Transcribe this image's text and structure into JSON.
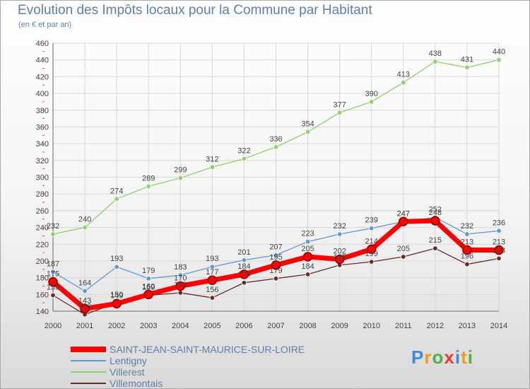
{
  "header": {
    "title": "Evolution des Impôts locaux pour la Commune par Habitant",
    "subtitle": "(en € et par an)"
  },
  "brand": {
    "letters": [
      "P",
      "r",
      "o",
      "x",
      "i",
      "t",
      "i"
    ],
    "colors": [
      "#3c8fd6",
      "#f39c12",
      "#4caf50",
      "#e53935",
      "#3c8fd6",
      "#f39c12",
      "#4caf50"
    ]
  },
  "chart_data": {
    "type": "line",
    "x": [
      "2000",
      "2001",
      "2002",
      "2003",
      "2004",
      "2005",
      "2006",
      "2007",
      "2008",
      "2009",
      "2010",
      "2011",
      "2012",
      "2013",
      "2014"
    ],
    "ylim": [
      140,
      460
    ],
    "yticks": [
      "140",
      "160",
      "180",
      "200",
      "220",
      "240",
      "260",
      "280",
      "300",
      "320",
      "340",
      "360",
      "380",
      "400",
      "420",
      "440",
      "460"
    ],
    "grid": true,
    "legend_position": "bottom-left",
    "series": [
      {
        "name": "SAINT-JEAN-SAINT-MAURICE-SUR-LOIRE",
        "color": "#ff0000",
        "values": [
          175,
          143,
          149,
          160,
          170,
          177,
          184,
          195,
          205,
          202,
          214,
          247,
          248,
          213,
          213
        ]
      },
      {
        "name": "Lentigny",
        "color": "#5a9bd5",
        "values": [
          187,
          164,
          193,
          179,
          183,
          193,
          201,
          207,
          223,
          232,
          239,
          247,
          252,
          232,
          236
        ]
      },
      {
        "name": "Villerest",
        "color": "#8fd16a",
        "values": [
          232,
          240,
          274,
          289,
          299,
          312,
          322,
          336,
          354,
          377,
          390,
          413,
          438,
          431,
          440
        ]
      },
      {
        "name": "Villemontais",
        "color": "#6b2a2a",
        "values": [
          159,
          136,
          150,
          159,
          162,
          156,
          174,
          179,
          184,
          195,
          199,
          205,
          215,
          196,
          203
        ]
      }
    ]
  }
}
